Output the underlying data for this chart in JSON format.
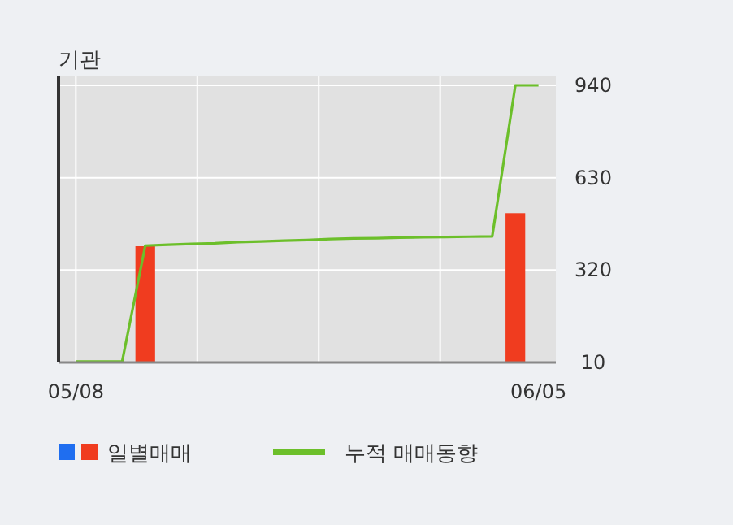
{
  "chart_data": {
    "type": "bar",
    "title": "기관",
    "categories": [
      "05/08",
      null,
      null,
      null,
      null,
      null,
      null,
      null,
      null,
      null,
      null,
      null,
      null,
      null,
      null,
      null,
      null,
      null,
      null,
      null,
      "06/05"
    ],
    "series": [
      {
        "name": "일별매매",
        "color": "#f03c1f",
        "values": [
          null,
          null,
          null,
          400,
          null,
          null,
          null,
          null,
          null,
          null,
          null,
          null,
          null,
          null,
          null,
          null,
          null,
          null,
          null,
          511,
          null
        ]
      },
      {
        "name": "누적 매매동향",
        "type": "line",
        "color": "#6cbf2a",
        "values": [
          13,
          13,
          13,
          402,
          405,
          408,
          410,
          414,
          416,
          419,
          421,
          424,
          426,
          427,
          429,
          430,
          431,
          432,
          433,
          940,
          940
        ]
      }
    ],
    "ylim": [
      10,
      970
    ],
    "yticks": [
      10,
      320,
      630,
      940
    ],
    "grid": true,
    "legend": "bottom"
  }
}
